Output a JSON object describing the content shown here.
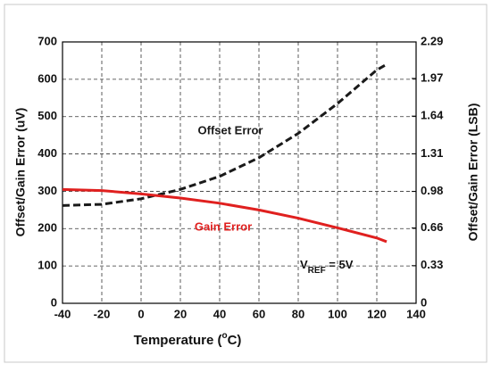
{
  "chart_data": {
    "type": "line",
    "x": [
      -40,
      -20,
      0,
      20,
      40,
      60,
      80,
      100,
      120,
      125
    ],
    "series": [
      {
        "name": "Offset Error",
        "color": "#1a1a1a",
        "dashed": true,
        "values": [
          262,
          265,
          280,
          305,
          340,
          390,
          455,
          535,
          625,
          640
        ]
      },
      {
        "name": "Gain Error",
        "color": "#e0201f",
        "dashed": false,
        "values": [
          305,
          302,
          293,
          282,
          268,
          250,
          228,
          202,
          175,
          165
        ]
      }
    ],
    "xlim": [
      -40,
      140
    ],
    "xticks": [
      -40,
      -20,
      0,
      20,
      40,
      60,
      80,
      100,
      120,
      140
    ],
    "ylim": [
      0,
      700
    ],
    "yticks": [
      0,
      100,
      200,
      300,
      400,
      500,
      600,
      700
    ],
    "y2lim": [
      0,
      2.29
    ],
    "y2ticks": [
      0,
      0.33,
      0.66,
      0.98,
      1.31,
      1.64,
      1.97,
      2.29
    ],
    "grid": true,
    "xlabel": {
      "before": "Temperature (",
      "sup": "o",
      "after": "C)"
    },
    "ylabel": "Offset/Gain Error (uV)",
    "y2label": "Offset/Gain Error (LSB)",
    "annotation": {
      "main": "V",
      "sub": "REF",
      "rest": " = 5V"
    }
  }
}
